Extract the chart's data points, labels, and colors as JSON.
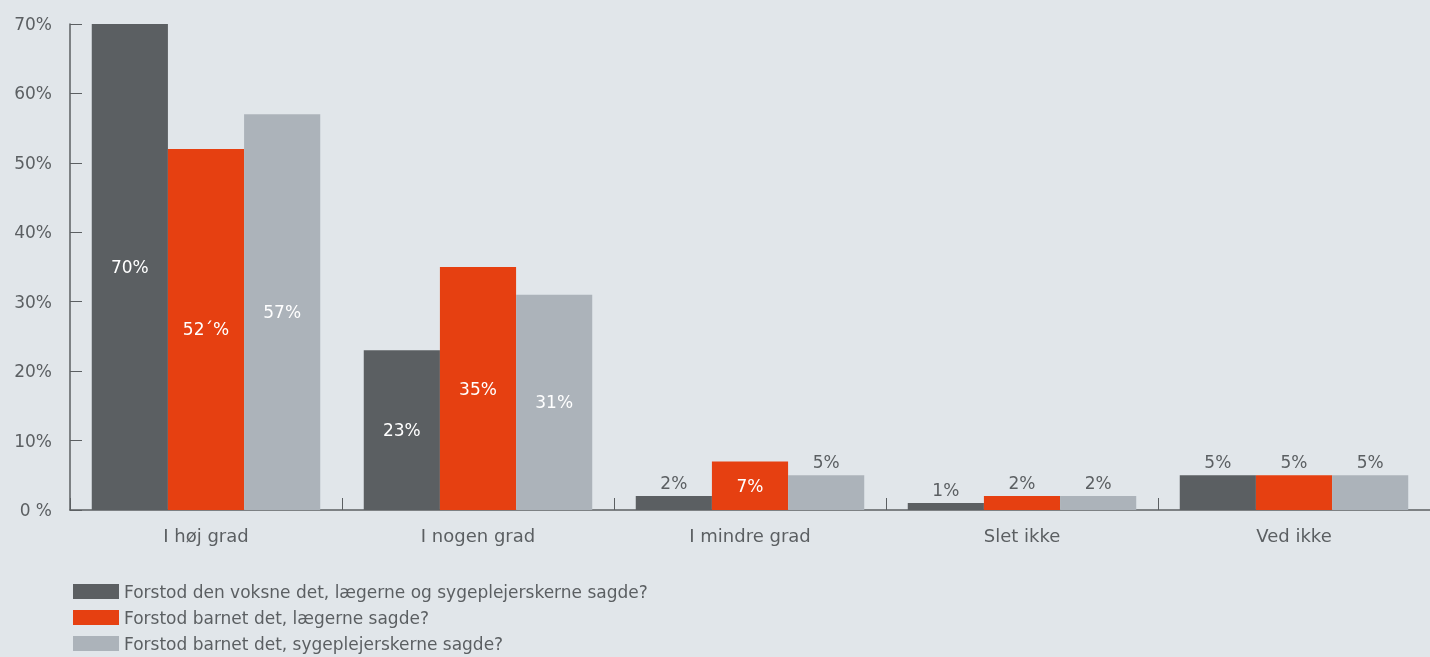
{
  "chart_data": {
    "type": "bar",
    "categories": [
      "I høj grad",
      "I nogen grad",
      "I mindre grad",
      "Slet ikke",
      "Ved ikke"
    ],
    "series": [
      {
        "name": "Forstod den voksne det, lægerne og sygeplejerskerne sagde?",
        "color": "#5b5f62",
        "values": [
          70,
          23,
          2,
          1,
          5
        ],
        "value_labels": [
          "70%",
          "23%",
          "2%",
          "1%",
          "5%"
        ]
      },
      {
        "name": "Forstod barnet det, lægerne sagde?",
        "color": "#e64011",
        "values": [
          52,
          35,
          7,
          2,
          5
        ],
        "value_labels": [
          "52´%",
          "35%",
          "7%",
          "2%",
          "5%"
        ]
      },
      {
        "name": "Forstod barnet det, sygeplejerskerne sagde?",
        "color": "#acb3ba",
        "values": [
          57,
          31,
          5,
          2,
          5
        ],
        "value_labels": [
          "57%",
          "31%",
          "5%",
          "2%",
          "5%"
        ]
      }
    ],
    "ylim": [
      0,
      70
    ],
    "yticks": [
      {
        "value": 0,
        "label": "0 %"
      },
      {
        "value": 10,
        "label": "10%"
      },
      {
        "value": 20,
        "label": "20%"
      },
      {
        "value": 30,
        "label": "30%"
      },
      {
        "value": 40,
        "label": "40%"
      },
      {
        "value": 50,
        "label": "50%"
      },
      {
        "value": 60,
        "label": "60%"
      },
      {
        "value": 70,
        "label": "70%"
      }
    ],
    "grid": false,
    "legend": "bottom left"
  }
}
